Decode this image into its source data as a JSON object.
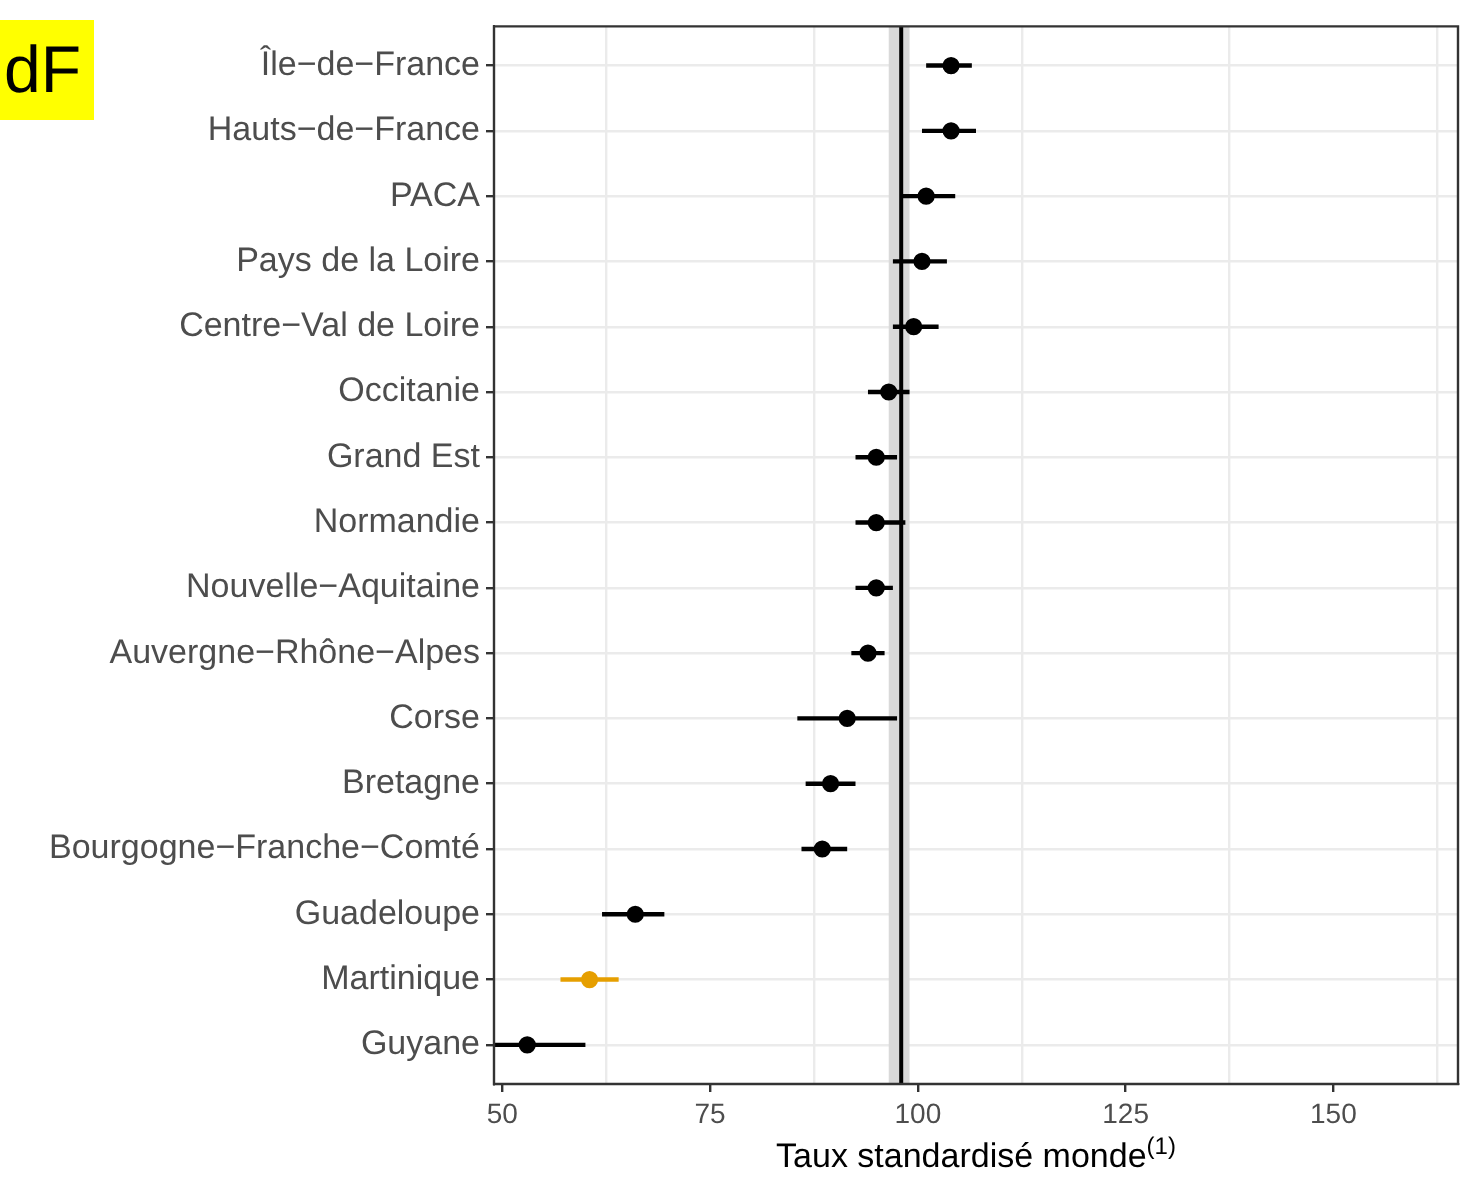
{
  "chart_data": {
    "type": "scatter",
    "orientation": "horizontal",
    "categories": [
      "Île−de−France",
      "Hauts−de−France",
      "PACA",
      "Pays de la Loire",
      "Centre−Val de Loire",
      "Occitanie",
      "Grand Est",
      "Normandie",
      "Nouvelle−Aquitaine",
      "Auvergne−Rhône−Alpes",
      "Corse",
      "Bretagne",
      "Bourgogne−Franche−Comté",
      "Guadeloupe",
      "Martinique",
      "Guyane"
    ],
    "values": [
      104,
      104,
      101,
      100.5,
      99.5,
      96.5,
      95,
      95,
      95,
      94,
      91.5,
      89.5,
      88.5,
      66,
      60.5,
      53
    ],
    "errors": [
      [
        101,
        106.5
      ],
      [
        100.5,
        107
      ],
      [
        98,
        104.5
      ],
      [
        97,
        103.5
      ],
      [
        97,
        102.5
      ],
      [
        94,
        99
      ],
      [
        92.5,
        97.5
      ],
      [
        92.5,
        98.5
      ],
      [
        92.5,
        97
      ],
      [
        92,
        96
      ],
      [
        85.5,
        97.5
      ],
      [
        86.5,
        92.5
      ],
      [
        86,
        91.5
      ],
      [
        62,
        69.5
      ],
      [
        57,
        64
      ],
      [
        49,
        60
      ]
    ],
    "colors": [
      "#000000",
      "#000000",
      "#000000",
      "#000000",
      "#000000",
      "#000000",
      "#000000",
      "#000000",
      "#000000",
      "#000000",
      "#000000",
      "#000000",
      "#000000",
      "#000000",
      "#e69f00",
      "#000000"
    ],
    "xlim": [
      49,
      165
    ],
    "xticks": [
      50,
      {
        "value": 62.5,
        "label": null
      },
      75,
      {
        "value": 87.5,
        "label": null
      },
      100,
      {
        "value": 112.5,
        "label": null
      },
      125,
      {
        "value": 137.5,
        "label": null
      },
      150,
      {
        "value": 162.5,
        "label": null
      }
    ],
    "xlabel": "Taux standardisé monde$^{(1)}$",
    "ref_lines": [
      {
        "axis": "x",
        "value": 98,
        "color": "#000000"
      }
    ],
    "bands": [
      {
        "axis": "x",
        "from": 96.5,
        "to": 99,
        "color": "#d9d9d9"
      }
    ],
    "grid": true,
    "marker": "circle",
    "annotations": [
      "dF"
    ]
  }
}
